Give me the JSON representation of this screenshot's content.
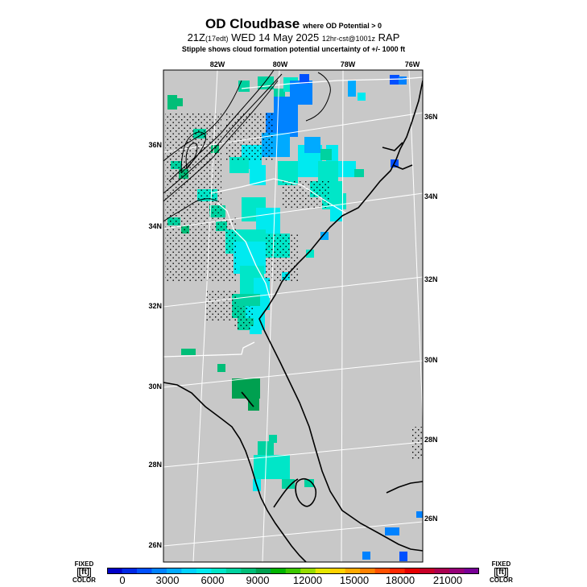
{
  "header": {
    "title": "OD Cloudbase",
    "title_note": "where OD Potential > 0",
    "run_prefix": "21Z",
    "run_local": "(17edt)",
    "run_date": "WED 14 May 2025",
    "run_init": "12hr-cst@1001z",
    "run_model": "RAP",
    "subtitle": "Stipple shows cloud formation potential uncertainty of +/- 1000 ft"
  },
  "map": {
    "background": "#c8c8c8",
    "lon_labels": [
      "82W",
      "80W",
      "78W",
      "76W"
    ],
    "lat_labels_left": [
      "36N",
      "34N",
      "32N",
      "30N",
      "28N",
      "26N"
    ],
    "lat_labels_right": [
      "36N",
      "34N",
      "32N",
      "30N",
      "28N",
      "26N"
    ]
  },
  "legend": {
    "left_top": "FIXED",
    "left_mid": "[ft]",
    "left_bottom": "COLOR",
    "right_top": "FIXED",
    "right_mid": "[ft]",
    "right_bottom": "COLOR",
    "tick_labels": [
      "0",
      "3000",
      "6000",
      "9000",
      "12000",
      "15000",
      "18000",
      "21000"
    ],
    "colors": [
      "#0000c8",
      "#0028e6",
      "#0050ff",
      "#0082ff",
      "#00aaff",
      "#00d2ff",
      "#00eaf0",
      "#00e6c8",
      "#00d2a0",
      "#00be78",
      "#00a050",
      "#00b400",
      "#3cc800",
      "#96dc00",
      "#e6e600",
      "#ffd200",
      "#ffaa00",
      "#ff8200",
      "#ff5000",
      "#ff2800",
      "#e60000",
      "#c80028",
      "#aa0050",
      "#960078",
      "#780096"
    ]
  }
}
